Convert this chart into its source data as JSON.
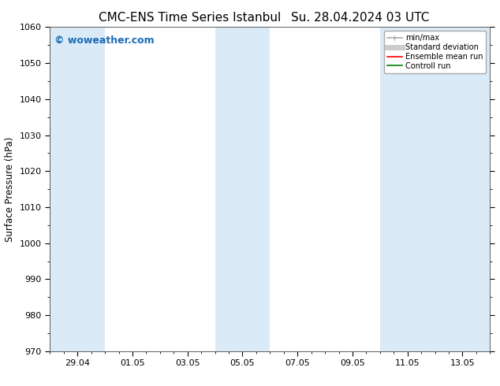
{
  "title_left": "CMC-ENS Time Series Istanbul",
  "title_right": "Su. 28.04.2024 03 UTC",
  "ylabel": "Surface Pressure (hPa)",
  "ylim": [
    970,
    1060
  ],
  "yticks": [
    970,
    980,
    990,
    1000,
    1010,
    1020,
    1030,
    1040,
    1050,
    1060
  ],
  "xtick_labels": [
    "29.04",
    "01.05",
    "03.05",
    "05.05",
    "07.05",
    "09.05",
    "11.05",
    "13.05"
  ],
  "xtick_positions": [
    1,
    3,
    5,
    7,
    9,
    11,
    13,
    15
  ],
  "xlim": [
    0,
    16
  ],
  "shaded_bands": [
    {
      "x_start": 0,
      "x_end": 2
    },
    {
      "x_start": 6,
      "x_end": 8
    },
    {
      "x_start": 12,
      "x_end": 16
    }
  ],
  "shade_color": "#daeaf6",
  "watermark_text": "© woweather.com",
  "watermark_color": "#1a6bb5",
  "legend_entries": [
    {
      "label": "min/max",
      "color": "#aaaaaa",
      "lw": 1.2
    },
    {
      "label": "Standard deviation",
      "color": "#cccccc",
      "lw": 5
    },
    {
      "label": "Ensemble mean run",
      "color": "#ff0000",
      "lw": 1.2
    },
    {
      "label": "Controll run",
      "color": "#008000",
      "lw": 1.2
    }
  ],
  "bg_color": "#ffffff",
  "title_fontsize": 11,
  "label_fontsize": 8.5,
  "tick_fontsize": 8,
  "watermark_fontsize": 9
}
